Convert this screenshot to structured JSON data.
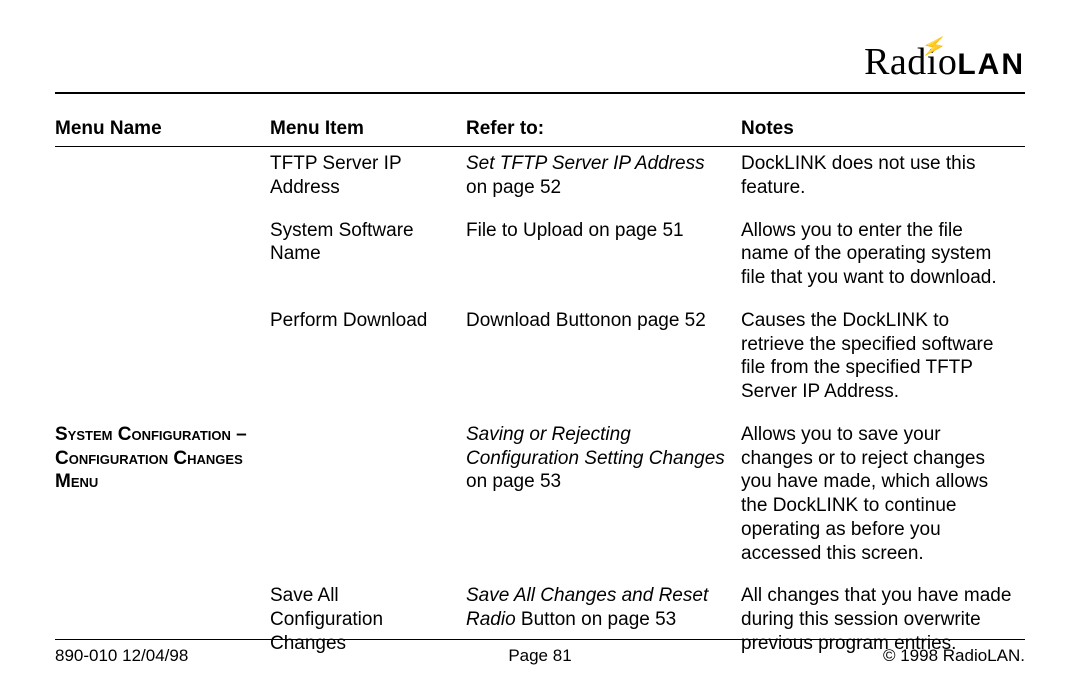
{
  "brand": {
    "part1": "Radio",
    "part2": "LAN"
  },
  "headers": {
    "menu_name": "Menu Name",
    "menu_item": "Menu Item",
    "refer_to": "Refer to:",
    "notes": "Notes"
  },
  "rows": {
    "r1": {
      "menu_name": "",
      "menu_item": "TFTP Server IP Address",
      "refer_italic": "Set TFTP Server IP Address",
      "refer_rest": " on page 52",
      "notes": "DockLINK does not use this feature."
    },
    "r2": {
      "menu_item": "System Software Name",
      "refer": "File to Upload on page 51",
      "notes": "Allows you to enter the file name of the operating system file that you want to download."
    },
    "r3": {
      "menu_item": "Perform Download",
      "refer": "Download Buttonon page 52",
      "notes": "Causes the DockLINK to retrieve the specified software file from the specified TFTP Server IP Address."
    },
    "r4": {
      "menu_name": "System Configuration – Configuration Changes Menu",
      "menu_item": "",
      "refer_italic": "Saving or Rejecting Configuration Setting Changes",
      "refer_rest": " on page 53",
      "notes": "Allows you to save your changes or to reject changes you have made, which allows the DockLINK to continue operating as before you accessed this screen."
    },
    "r5": {
      "menu_item": "Save All Configuration Changes",
      "refer_italic": "Save All Changes and Reset Radio",
      "refer_rest": " Button on page 53",
      "notes": "All changes that you have made during this session overwrite previous program entries."
    }
  },
  "footer": {
    "left": "890-010  12/04/98",
    "center": "Page 81",
    "right": "© 1998 RadioLAN."
  }
}
